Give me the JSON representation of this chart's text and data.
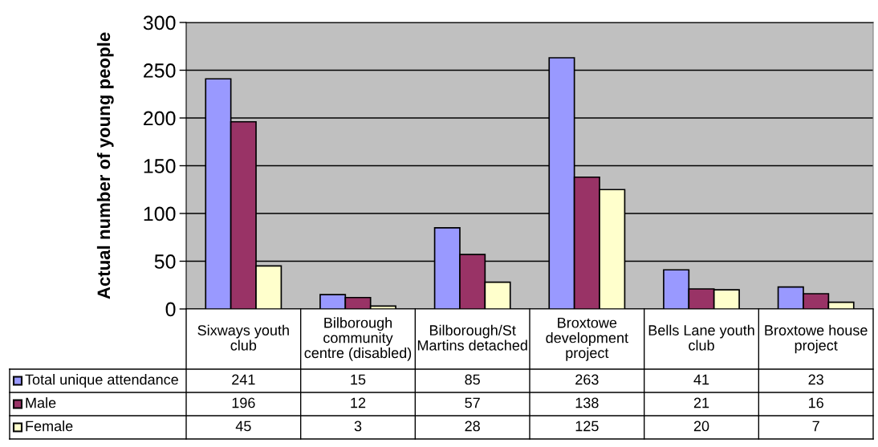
{
  "chart_data": {
    "type": "bar",
    "ylabel": "Actual number of young people",
    "categories": [
      "Sixways youth club",
      "Bilborough community centre (disabled)",
      "Bilborough/St Martins detached",
      "Broxtowe development project",
      "Bells Lane youth club",
      "Broxtowe house project"
    ],
    "series": [
      {
        "name": "Total unique attendance",
        "color": "#9999ff",
        "values": [
          241,
          15,
          85,
          263,
          41,
          23
        ]
      },
      {
        "name": "Male",
        "color": "#993366",
        "values": [
          196,
          12,
          57,
          138,
          21,
          16
        ]
      },
      {
        "name": "Female",
        "color": "#ffffcc",
        "values": [
          45,
          3,
          28,
          125,
          20,
          7
        ]
      }
    ],
    "ylim": [
      0,
      300
    ],
    "yticks": [
      0,
      50,
      100,
      150,
      200,
      250,
      300
    ],
    "grid": "y",
    "legend": "bottom",
    "data_labels": true
  }
}
